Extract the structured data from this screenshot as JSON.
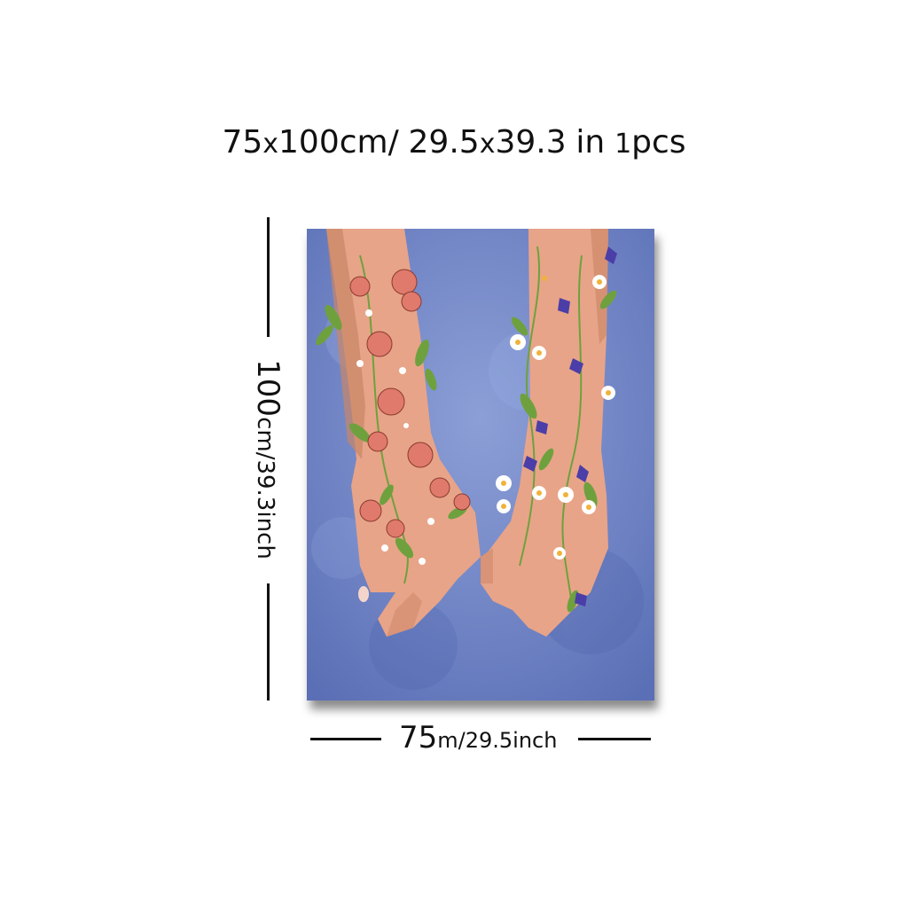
{
  "title": {
    "width_num": "75",
    "x1": "x",
    "height_num": "100cm/",
    "inch_w": "29.5",
    "x2": "x",
    "inch_h": "39.3",
    "unit": "in",
    "count_num": "1",
    "count_unit": "pcs"
  },
  "vertical_label": {
    "num": "100",
    "rest": "cm/39.3inch"
  },
  "horizontal_label": {
    "num": "75",
    "rest": "m/29.5inch"
  },
  "colors": {
    "background": "#ffffff",
    "canvas_blue": "#6f83c4",
    "skin": "#e8a488",
    "rose": "#e07a6c",
    "leaf": "#6ea13e",
    "bellflower": "#4b3ea8",
    "daisy": "#ffffff"
  },
  "artwork": {
    "subject": "two-hands-holding-pinky-with-flowers"
  }
}
